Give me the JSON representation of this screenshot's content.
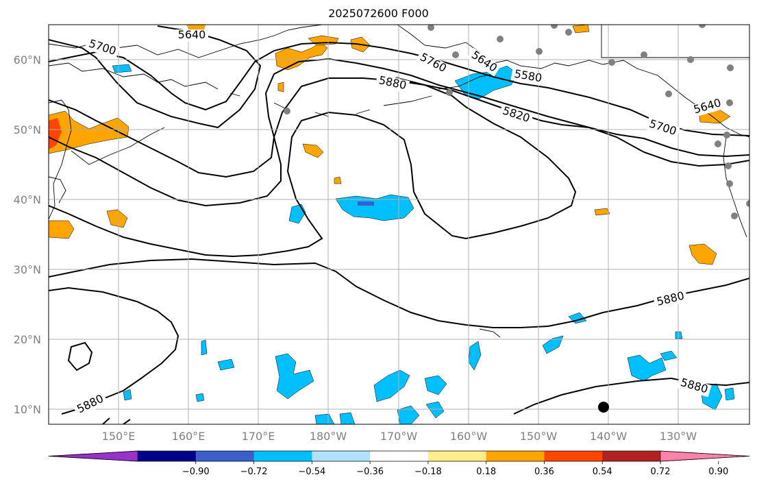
{
  "title": "2025072600 F000",
  "axes": {
    "lon_ticks": [
      "150°E",
      "160°E",
      "170°E",
      "180°W",
      "170°W",
      "160°W",
      "150°W",
      "140°W",
      "130°W"
    ],
    "lat_ticks": [
      "60°N",
      "50°N",
      "40°N",
      "30°N",
      "20°N",
      "10°N"
    ]
  },
  "colorbar": {
    "labels": [
      "−0.90",
      "−0.72",
      "−0.54",
      "−0.36",
      "−0.18",
      "0.18",
      "0.36",
      "0.54",
      "0.72",
      "0.90"
    ],
    "colors": [
      "#9932cc",
      "#00008b",
      "#3a5fcd",
      "#00bfff",
      "#b0e2ff",
      "#ffffff",
      "#ffec8b",
      "#ffa500",
      "#ff4500",
      "#b22222",
      "#ff82ab"
    ]
  },
  "contour_labels": [
    "5640",
    "5700",
    "5760",
    "5640",
    "5580",
    "5880",
    "5820",
    "5700",
    "5640",
    "5880",
    "5880",
    "5880"
  ],
  "colors": {
    "land": "#000000",
    "contour": "#000000",
    "grid": "#b0b0b0",
    "station": "#808080"
  }
}
